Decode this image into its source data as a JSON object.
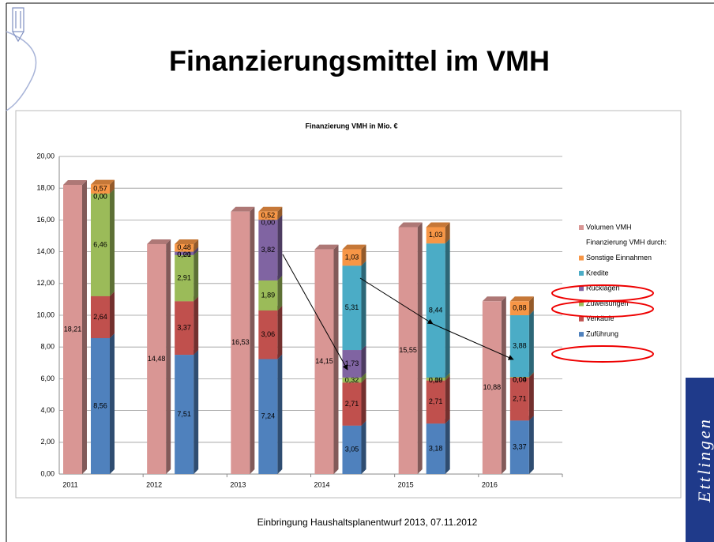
{
  "slide_title": "Finanzierungsmittel im VMH",
  "footer": "Einbringung Haushaltsplanentwurf 2013, 07.11.2012",
  "logo_text": "Ettlingen",
  "chart_data": {
    "type": "bar",
    "title": "Finanzierung VMH in Mio. €",
    "legend_heading": "Finanzierung VMH durch:",
    "categories": [
      "2011",
      "2012",
      "2013",
      "2014",
      "2015",
      "2016"
    ],
    "series": [
      {
        "name": "Volumen VMH",
        "color": "#d99694",
        "values": [
          18.21,
          14.48,
          16.53,
          14.15,
          15.55,
          10.88
        ],
        "value_labels": [
          "18,21",
          "14,48",
          "16,53",
          "14,15",
          "15,55",
          "10,88"
        ]
      },
      {
        "name": "Zuführung",
        "color": "#4f81bd",
        "values": [
          8.56,
          7.51,
          7.24,
          3.05,
          3.18,
          3.37
        ],
        "value_labels": [
          "8,56",
          "7,51",
          "7,24",
          "3,05",
          "3,18",
          "3,37"
        ]
      },
      {
        "name": "Verkäufe",
        "color": "#c0504d",
        "values": [
          2.64,
          3.37,
          3.06,
          2.71,
          2.71,
          2.71
        ],
        "value_labels": [
          "2,64",
          "3,37",
          "3,06",
          "2,71",
          "2,71",
          "2,71"
        ]
      },
      {
        "name": "Zuweisungen",
        "color": "#9bbb59",
        "values": [
          6.46,
          2.91,
          1.89,
          0.32,
          0.19,
          0.04
        ],
        "value_labels": [
          "6,46",
          "2,91",
          "1,89",
          "0,32",
          "0,19",
          "0,04"
        ]
      },
      {
        "name": "Rücklagen",
        "color": "#8064a2",
        "values": [
          0.0,
          0.21,
          3.82,
          1.73,
          0.0,
          0.0
        ],
        "value_labels": [
          "0,00",
          "0,21",
          "3,82",
          "1,73",
          "0,00",
          "0,00"
        ]
      },
      {
        "name": "Kredite",
        "color": "#4bacc6",
        "values": [
          0.0,
          0.0,
          0.0,
          5.31,
          8.44,
          3.88
        ],
        "value_labels": [
          "0,00",
          "0,00",
          "0,00",
          "5,31",
          "8,44",
          "3,88"
        ]
      },
      {
        "name": "Sonstige Einnahmen",
        "color": "#f79646",
        "values": [
          0.57,
          0.48,
          0.52,
          1.03,
          1.03,
          0.88
        ],
        "value_labels": [
          "0,57",
          "0,48",
          "0,52",
          "1,03",
          "1,03",
          "0,88"
        ]
      }
    ],
    "ylim": [
      0,
      20
    ],
    "yticks": [
      {
        "value": 0,
        "label": "0,00"
      },
      {
        "value": 2,
        "label": "2,00"
      },
      {
        "value": 4,
        "label": "4,00"
      },
      {
        "value": 6,
        "label": "6,00"
      },
      {
        "value": 8,
        "label": "8,00"
      },
      {
        "value": 10,
        "label": "10,00"
      },
      {
        "value": 12,
        "label": "12,00"
      },
      {
        "value": 14,
        "label": "14,00"
      },
      {
        "value": 16,
        "label": "16,00"
      },
      {
        "value": 18,
        "label": "18,00"
      },
      {
        "value": 20,
        "label": "20,00"
      }
    ],
    "grid": true
  }
}
